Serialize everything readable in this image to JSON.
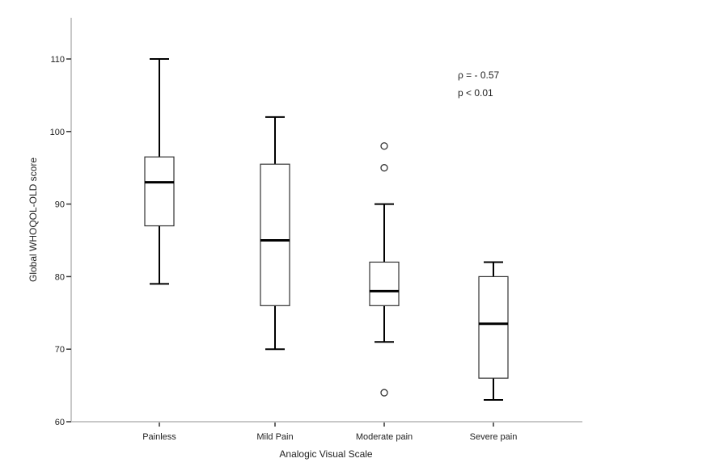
{
  "chart_data": {
    "type": "boxplot",
    "title": "",
    "xlabel": "Analogic Visual Scale",
    "ylabel": "Global WHOQOL-OLD score",
    "ylim": [
      60,
      115
    ],
    "yticks": [
      60,
      70,
      80,
      90,
      100,
      110
    ],
    "grid": false,
    "categories": [
      "Painless",
      "Mild Pain",
      "Moderate pain",
      "Severe pain"
    ],
    "boxes": [
      {
        "category": "Painless",
        "whisker_low": 79,
        "q1": 87,
        "median": 93,
        "q3": 96.5,
        "whisker_high": 110,
        "outliers": []
      },
      {
        "category": "Mild Pain",
        "whisker_low": 70,
        "q1": 76,
        "median": 85,
        "q3": 95.5,
        "whisker_high": 102,
        "outliers": []
      },
      {
        "category": "Moderate pain",
        "whisker_low": 71,
        "q1": 76,
        "median": 78,
        "q3": 82,
        "whisker_high": 90,
        "outliers": [
          98,
          95,
          64
        ]
      },
      {
        "category": "Severe pain",
        "whisker_low": 63,
        "q1": 66,
        "median": 73.5,
        "q3": 80,
        "whisker_high": 82,
        "outliers": []
      }
    ],
    "annotations": [
      "ρ = - 0.57",
      "p < 0.01"
    ],
    "colors": {
      "axis": "#c8c8c8",
      "box": "#000000"
    }
  }
}
